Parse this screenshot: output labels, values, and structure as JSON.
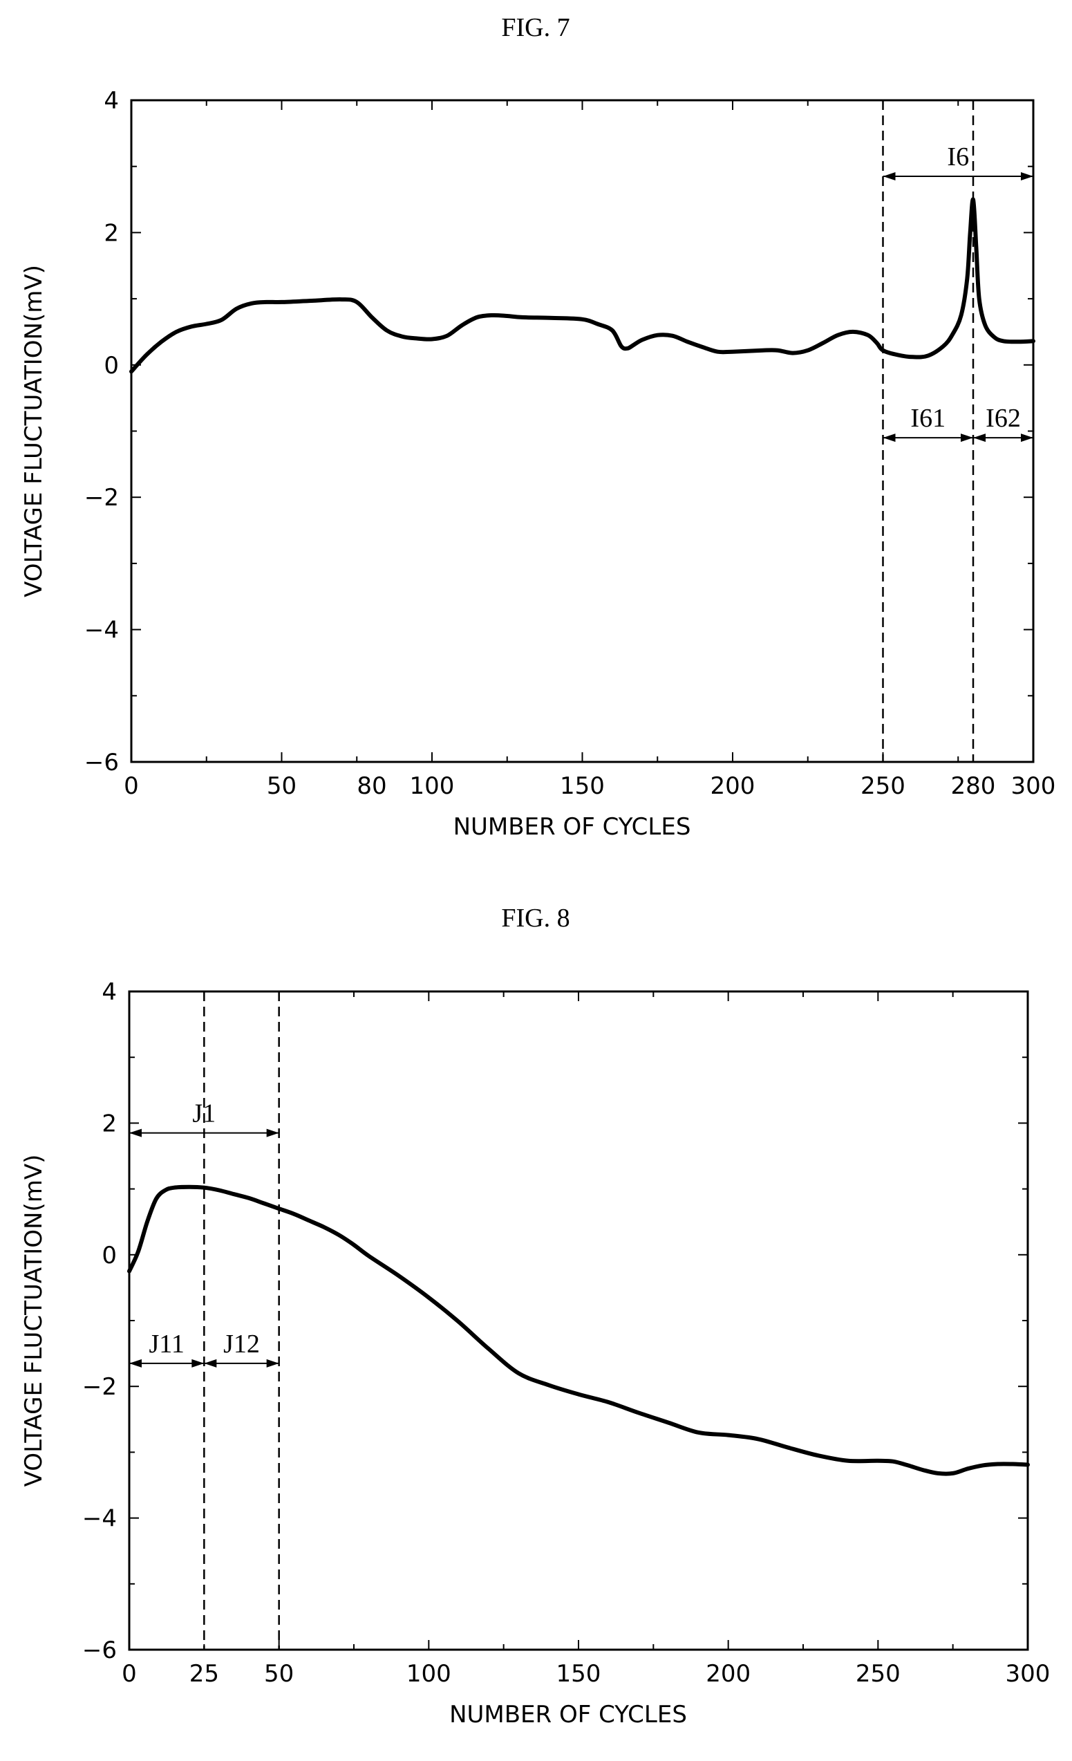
{
  "chart_data": [
    {
      "type": "line",
      "title": "FIG. 7",
      "xlabel": "NUMBER OF CYCLES",
      "ylabel": "VOLTAGE FLUCTUATION(mV)",
      "xlim": [
        0,
        300
      ],
      "ylim": [
        -6,
        4
      ],
      "xticks": [
        0,
        50,
        80,
        100,
        150,
        200,
        250,
        280,
        300
      ],
      "xtick_labels": [
        "0",
        "50",
        "80",
        "100",
        "150",
        "200",
        "250",
        "280",
        "300"
      ],
      "yticks": [
        4,
        2,
        0,
        -2,
        -4,
        -6
      ],
      "ytick_labels": [
        "4",
        "2",
        "0",
        "−2",
        "−4",
        "−6"
      ],
      "grid": false,
      "series": [
        {
          "x": [
            0,
            5,
            10,
            15,
            20,
            25,
            30,
            35,
            40,
            45,
            50,
            60,
            70,
            75,
            80,
            85,
            90,
            95,
            100,
            105,
            110,
            115,
            120,
            125,
            130,
            140,
            150,
            155,
            160,
            163,
            165,
            167,
            170,
            175,
            180,
            185,
            190,
            195,
            200,
            210,
            215,
            220,
            225,
            230,
            235,
            240,
            245,
            248,
            250,
            255,
            260,
            265,
            270,
            273,
            276,
            278,
            279,
            280,
            281,
            282,
            284,
            287,
            290,
            295,
            300
          ],
          "y": [
            -0.1,
            0.15,
            0.35,
            0.5,
            0.58,
            0.62,
            0.68,
            0.85,
            0.93,
            0.95,
            0.95,
            0.97,
            0.99,
            0.95,
            0.72,
            0.52,
            0.43,
            0.4,
            0.39,
            0.44,
            0.6,
            0.72,
            0.75,
            0.74,
            0.72,
            0.71,
            0.69,
            0.62,
            0.52,
            0.28,
            0.25,
            0.3,
            0.38,
            0.45,
            0.44,
            0.35,
            0.27,
            0.2,
            0.2,
            0.22,
            0.22,
            0.18,
            0.22,
            0.33,
            0.45,
            0.5,
            0.45,
            0.33,
            0.22,
            0.15,
            0.12,
            0.14,
            0.28,
            0.45,
            0.75,
            1.3,
            2.0,
            2.5,
            1.8,
            1.0,
            0.6,
            0.42,
            0.36,
            0.35,
            0.36
          ]
        }
      ],
      "annotations": [
        {
          "label": "I6",
          "from": 250,
          "to": 300,
          "y": 2.85
        },
        {
          "label": "I61",
          "from": 250,
          "to": 280,
          "y": -1.1
        },
        {
          "label": "I62",
          "from": 280,
          "to": 300,
          "y": -1.1
        }
      ],
      "vlines": [
        250,
        280
      ]
    },
    {
      "type": "line",
      "title": "FIG. 8",
      "xlabel": "NUMBER OF CYCLES",
      "ylabel": "VOLTAGE FLUCTUATION(mV)",
      "xlim": [
        0,
        300
      ],
      "ylim": [
        -6,
        4
      ],
      "xticks": [
        0,
        25,
        50,
        100,
        150,
        200,
        250,
        300
      ],
      "xtick_labels": [
        "0",
        "25",
        "50",
        "100",
        "150",
        "200",
        "250",
        "300"
      ],
      "yticks": [
        4,
        2,
        0,
        -2,
        -4,
        -6
      ],
      "ytick_labels": [
        "4",
        "2",
        "0",
        "−2",
        "−4",
        "−6"
      ],
      "grid": false,
      "series": [
        {
          "x": [
            0,
            3,
            6,
            9,
            12,
            15,
            20,
            25,
            30,
            35,
            40,
            45,
            50,
            55,
            60,
            65,
            70,
            75,
            80,
            90,
            100,
            110,
            120,
            130,
            140,
            150,
            160,
            170,
            180,
            190,
            200,
            210,
            220,
            230,
            240,
            250,
            255,
            260,
            265,
            270,
            275,
            280,
            285,
            290,
            295,
            300
          ],
          "y": [
            -0.25,
            0.05,
            0.5,
            0.85,
            0.98,
            1.02,
            1.03,
            1.02,
            0.98,
            0.92,
            0.86,
            0.78,
            0.7,
            0.62,
            0.52,
            0.42,
            0.3,
            0.15,
            -0.02,
            -0.32,
            -0.65,
            -1.02,
            -1.43,
            -1.8,
            -1.98,
            -2.12,
            -2.24,
            -2.4,
            -2.55,
            -2.7,
            -2.74,
            -2.8,
            -2.93,
            -3.05,
            -3.13,
            -3.13,
            -3.14,
            -3.2,
            -3.27,
            -3.32,
            -3.32,
            -3.25,
            -3.2,
            -3.18,
            -3.18,
            -3.19
          ]
        }
      ],
      "annotations": [
        {
          "label": "J1",
          "from": 0,
          "to": 50,
          "y": 1.85
        },
        {
          "label": "J11",
          "from": 0,
          "to": 25,
          "y": -1.65
        },
        {
          "label": "J12",
          "from": 25,
          "to": 50,
          "y": -1.65
        }
      ],
      "vlines": [
        25,
        50
      ]
    }
  ]
}
